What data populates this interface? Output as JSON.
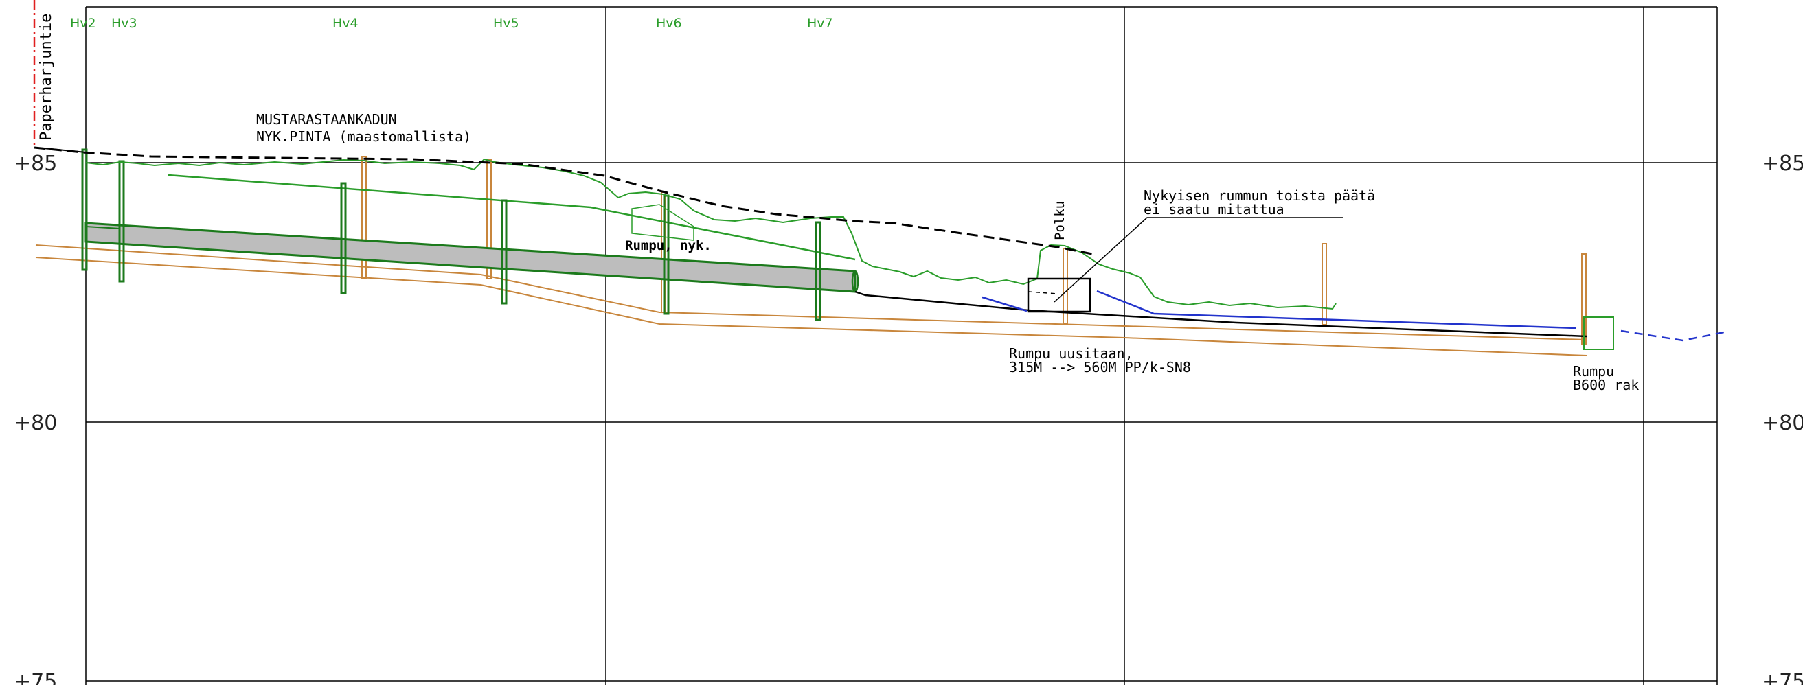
{
  "elevations": {
    "e85": "+85",
    "e80": "+80",
    "e75": "+75"
  },
  "wells": [
    "Hv2",
    "Hv3",
    "Hv4",
    "Hv5",
    "Hv6",
    "Hv7"
  ],
  "road_name": "Paperharjuntie",
  "surface_label": {
    "line1": "MUSTARASTAANKADUN",
    "line2": "NYK.PINTA (maastomallista)"
  },
  "culvert_existing": "Rumpu, nyk.",
  "path_label": "Polku",
  "culvert_note": {
    "line1": "Nykyisen rummun toista päätä",
    "line2": "ei saatu mitattua"
  },
  "renewal_note": {
    "line1": "Rumpu uusitaan,",
    "line2": "315M --> 560M PP/k-SN8"
  },
  "outlet_note": {
    "line1": "Rumpu",
    "line2": "B600 rak"
  },
  "colors": {
    "grid": "#000000",
    "green": "#2a9d2a",
    "dark_green": "#1c7a1c",
    "orange": "#c8863c",
    "blue": "#2233cc",
    "red": "#e02020",
    "pipe_fill": "#bdbdbd"
  }
}
